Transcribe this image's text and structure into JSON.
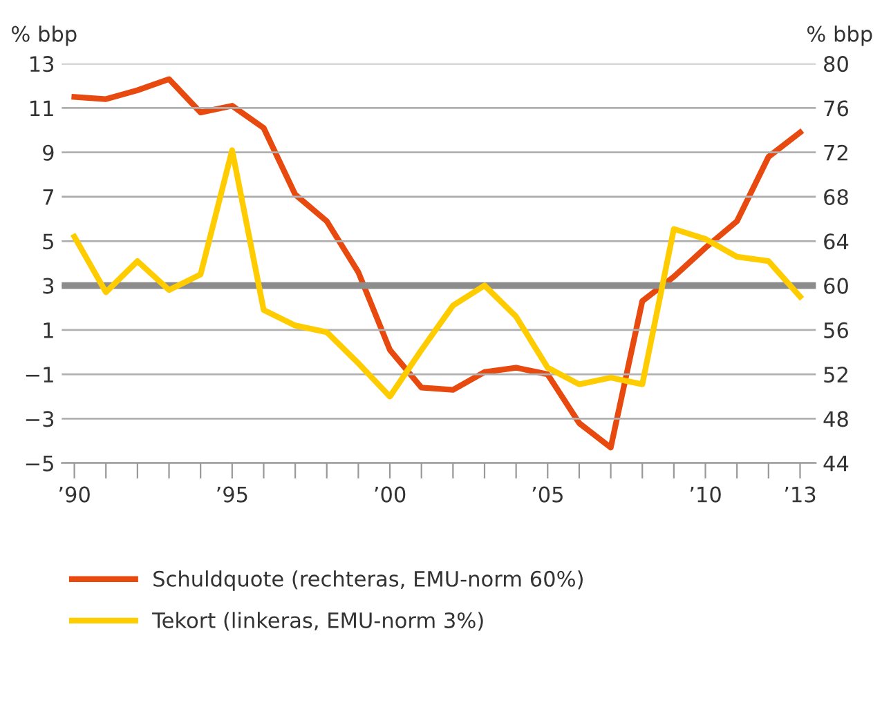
{
  "chart_data": {
    "type": "line",
    "ylabel": "% bbp",
    "y2label": "% bbp",
    "x": [
      1990,
      1991,
      1992,
      1993,
      1994,
      1995,
      1996,
      1997,
      1998,
      1999,
      2000,
      2001,
      2002,
      2003,
      2004,
      2005,
      2006,
      2007,
      2008,
      2009,
      2010,
      2011,
      2012,
      2013
    ],
    "series": [
      {
        "name": "Schuldquote (rechteras, EMU-norm 60%)",
        "color": "#e8490f",
        "axis": "y2",
        "values": [
          77.0,
          76.8,
          77.6,
          78.6,
          75.6,
          76.2,
          74.2,
          68.2,
          65.8,
          61.2,
          54.2,
          50.8,
          50.6,
          52.2,
          52.6,
          52.0,
          47.6,
          45.4,
          58.6,
          60.8,
          63.4,
          65.8,
          71.6,
          73.8
        ]
      },
      {
        "name": "Tekort (linkeras, EMU-norm 3%)",
        "color": "#ffcc00",
        "values": [
          5.2,
          2.7,
          4.1,
          2.8,
          3.5,
          9.1,
          1.9,
          1.2,
          0.9,
          -0.5,
          -2.0,
          0.1,
          2.1,
          3.0,
          1.6,
          -0.7,
          -1.45,
          -1.15,
          -1.45,
          5.55,
          5.1,
          4.3,
          4.1,
          2.5
        ]
      }
    ],
    "xlim": [
      1989.6,
      2013.5
    ],
    "xticks": [
      {
        "value": 1990,
        "label": "’90"
      },
      {
        "value": 1991,
        "label": null
      },
      {
        "value": 1992,
        "label": null
      },
      {
        "value": 1993,
        "label": null
      },
      {
        "value": 1994,
        "label": null
      },
      {
        "value": 1995,
        "label": "’95"
      },
      {
        "value": 1996,
        "label": null
      },
      {
        "value": 1997,
        "label": null
      },
      {
        "value": 1998,
        "label": null
      },
      {
        "value": 1999,
        "label": null
      },
      {
        "value": 2000,
        "label": "’00"
      },
      {
        "value": 2001,
        "label": null
      },
      {
        "value": 2002,
        "label": null
      },
      {
        "value": 2003,
        "label": null
      },
      {
        "value": 2004,
        "label": null
      },
      {
        "value": 2005,
        "label": "’05"
      },
      {
        "value": 2006,
        "label": null
      },
      {
        "value": 2007,
        "label": null
      },
      {
        "value": 2008,
        "label": null
      },
      {
        "value": 2009,
        "label": null
      },
      {
        "value": 2010,
        "label": "’10"
      },
      {
        "value": 2011,
        "label": null
      },
      {
        "value": 2012,
        "label": null
      },
      {
        "value": 2013,
        "label": "’13"
      }
    ],
    "ylim": [
      -5,
      13
    ],
    "yticks": [
      {
        "value": -5,
        "label": "−5"
      },
      {
        "value": -3,
        "label": "−3"
      },
      {
        "value": -1,
        "label": "−1"
      },
      1,
      3,
      5,
      7,
      9,
      11,
      13
    ],
    "y2lim": [
      44,
      80
    ],
    "y2ticks": [
      44,
      48,
      52,
      56,
      60,
      64,
      68,
      72,
      76,
      80
    ],
    "ref_lines": [
      {
        "axis": "y",
        "value": 3,
        "color": "#8c8c8c"
      }
    ],
    "grid": "y",
    "legend": "bottom",
    "marker": "none",
    "line_style": "solid"
  }
}
